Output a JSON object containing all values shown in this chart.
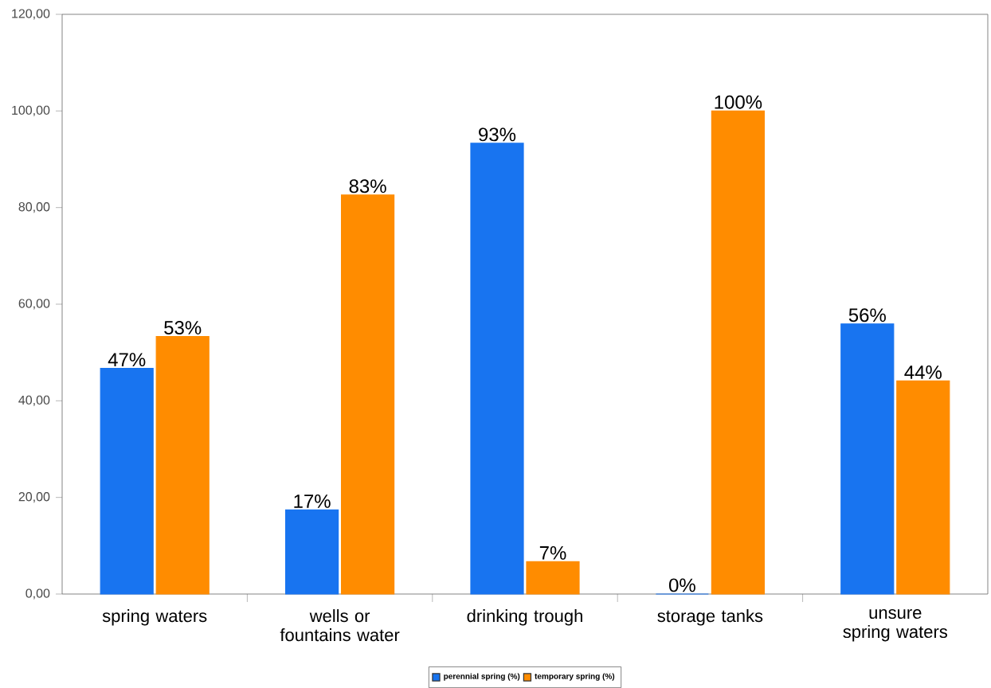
{
  "chart_data": {
    "type": "bar",
    "categories": [
      "spring waters",
      "wells or fountains water",
      "drinking trough",
      "storage tanks",
      "unsure spring waters"
    ],
    "series": [
      {
        "name": "perennial spring (%)",
        "color": "#1874f0",
        "values": [
          46.7,
          17.4,
          93.3,
          0,
          55.9
        ],
        "value_labels": [
          "47%",
          "17%",
          "93%",
          "0%",
          "56%"
        ]
      },
      {
        "name": "temporary spring (%)",
        "color": "#ff8c00",
        "values": [
          53.3,
          82.6,
          6.7,
          100,
          44.1
        ],
        "value_labels": [
          "53%",
          "83%",
          "7%",
          "100%",
          "44%"
        ]
      }
    ],
    "ylim": [
      0,
      120
    ],
    "yticks": [
      {
        "value": 0,
        "label": "0,00"
      },
      {
        "value": 20,
        "label": "20,00"
      },
      {
        "value": 40,
        "label": "40,00"
      },
      {
        "value": 60,
        "label": "60,00"
      },
      {
        "value": 80,
        "label": "80,00"
      },
      {
        "value": 100,
        "label": "100,00"
      },
      {
        "value": 120,
        "label": "120,00"
      }
    ],
    "grid": false,
    "legend": "bottom"
  }
}
